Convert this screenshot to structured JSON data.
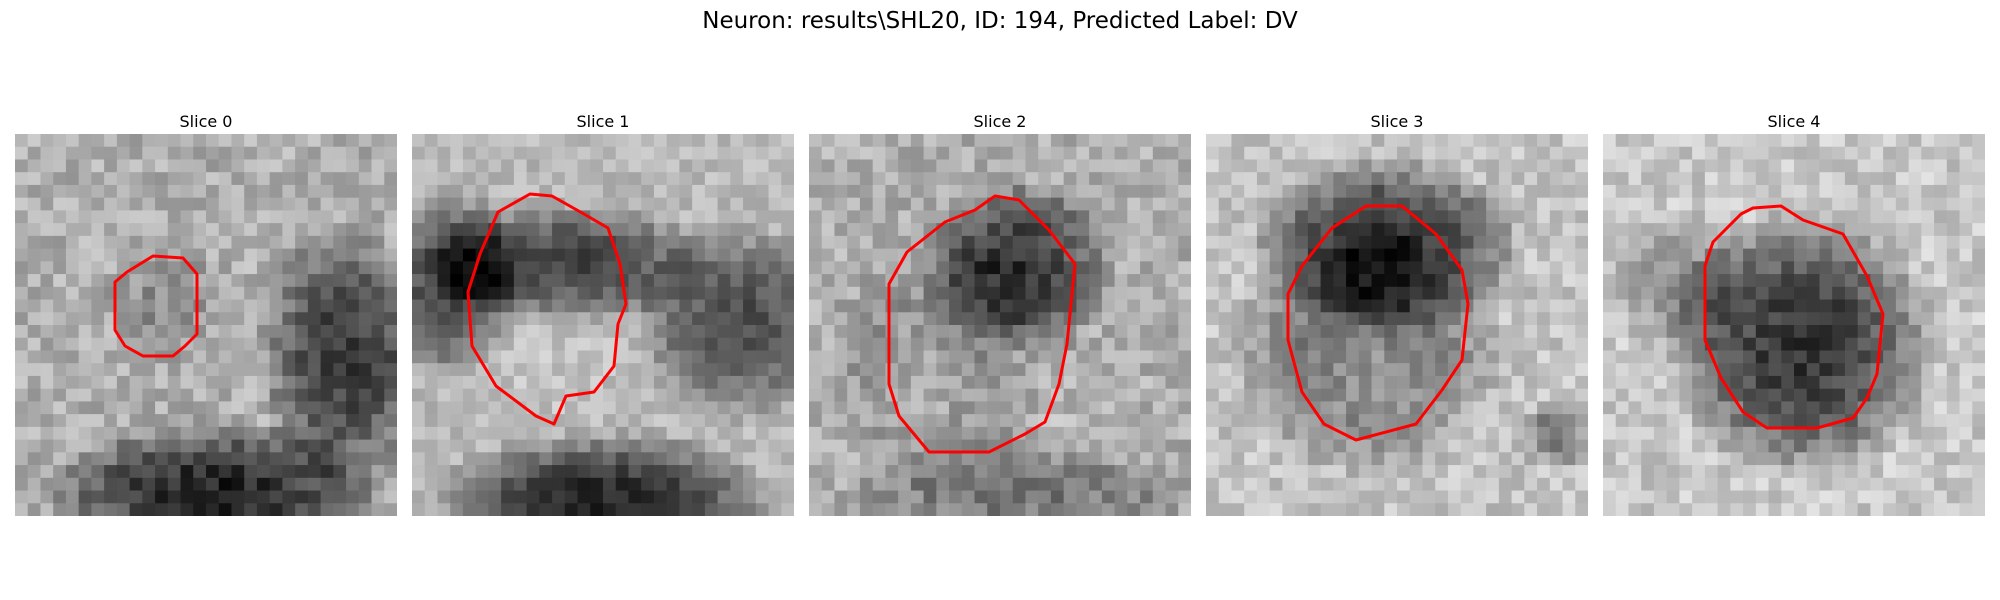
{
  "figure": {
    "title": "Neuron: results\\SHL20, ID: 194, Predicted Label: DV"
  },
  "contour_color": "#ff0000",
  "panels": [
    {
      "title": "Slice 0"
    },
    {
      "title": "Slice 1"
    },
    {
      "title": "Slice 2"
    },
    {
      "title": "Slice 3"
    },
    {
      "title": "Slice 4"
    }
  ]
}
